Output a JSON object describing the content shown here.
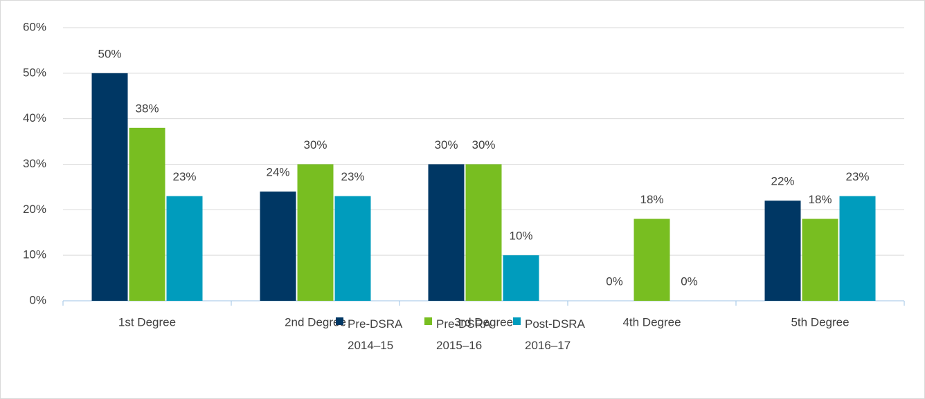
{
  "chart_data": {
    "type": "bar",
    "categories": [
      "1st Degree",
      "2nd Degree",
      "3rd Degree",
      "4th Degree",
      "5th Degree"
    ],
    "series": [
      {
        "name": "Pre-DSRA 2014–15",
        "color": "#003764",
        "values": [
          50,
          24,
          30,
          0,
          22
        ],
        "value_labels": [
          "50%",
          "24%",
          "30%",
          "0%",
          "22%"
        ]
      },
      {
        "name": "Pre-DSRA 2015–16",
        "color": "#78be21",
        "values": [
          38,
          30,
          30,
          18,
          18
        ],
        "value_labels": [
          "38%",
          "30%",
          "30%",
          "18%",
          "18%"
        ]
      },
      {
        "name": "Post-DSRA 2016–17",
        "color": "#009cbd",
        "values": [
          23,
          23,
          10,
          0,
          23
        ],
        "value_labels": [
          "23%",
          "23%",
          "10%",
          "0%",
          "23%"
        ]
      }
    ],
    "ylim": [
      0,
      60
    ],
    "yticks": [
      {
        "value": 0,
        "label": "0%"
      },
      {
        "value": 10,
        "label": "10%"
      },
      {
        "value": 20,
        "label": "20%"
      },
      {
        "value": 30,
        "label": "30%"
      },
      {
        "value": 40,
        "label": "40%"
      },
      {
        "value": 50,
        "label": "50%"
      },
      {
        "value": 60,
        "label": "60%"
      }
    ],
    "grid": true,
    "legend": "bottom"
  }
}
